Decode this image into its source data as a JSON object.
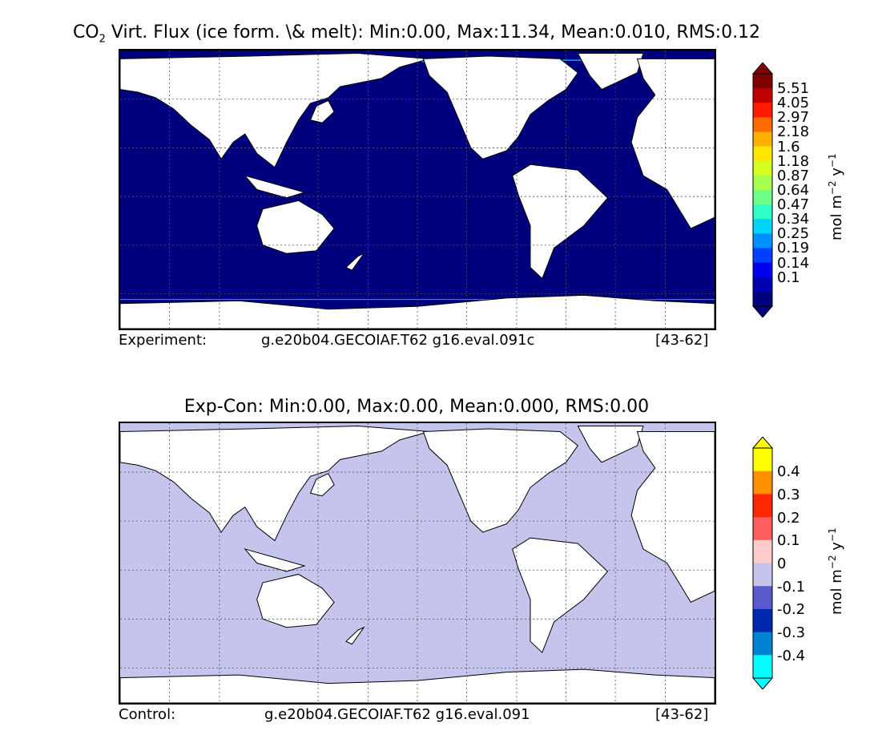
{
  "panels": [
    {
      "id": "experiment",
      "title_main": "Virt. Flux (ice form. \\& melt): Min:0.00, Max:11.34, Mean:0.010, RMS:0.12",
      "title_prefix": "CO",
      "title_sub": "2",
      "footer_left": "Experiment:",
      "footer_mid": "g.e20b04.GECOIAF.T62 g16.eval.091c",
      "footer_right": "[43-62]",
      "ocean_color": "#00007f",
      "colorbar": {
        "unit_main": "mol m",
        "unit_exp1": "−2",
        "unit_mid": " y",
        "unit_exp2": "−1",
        "labels": [
          "5.51",
          "4.05",
          "2.97",
          "2.18",
          "1.6",
          "1.18",
          "0.87",
          "0.64",
          "0.47",
          "0.34",
          "0.25",
          "0.19",
          "0.14",
          "0.1"
        ],
        "colors": [
          "#7f0000",
          "#bf0000",
          "#ff1a00",
          "#ff6a00",
          "#ffb000",
          "#ffe600",
          "#d4ff22",
          "#a6ff50",
          "#6dff8a",
          "#30ffc7",
          "#00d4ff",
          "#0090ff",
          "#0040ff",
          "#0000f1",
          "#0000b2",
          "#00007f"
        ]
      }
    },
    {
      "id": "difference",
      "title_main": "Exp-Con: Min:0.00, Max:0.00, Mean:0.000, RMS:0.00",
      "footer_left": "Control:",
      "footer_mid": "g.e20b04.GECOIAF.T62 g16.eval.091",
      "footer_right": "[43-62]",
      "ocean_color": "#c4c4ec",
      "colorbar": {
        "unit_main": "mol m",
        "unit_exp1": "−2",
        "unit_mid": " y",
        "unit_exp2": "−1",
        "labels": [
          "0.4",
          "0.3",
          "0.2",
          "0.1",
          "0",
          "-0.1",
          "-0.2",
          "-0.3",
          "-0.4"
        ],
        "colors": [
          "#ffff00",
          "#ff9100",
          "#ff2800",
          "#ff5e5e",
          "#ffcccc",
          "#c4c4ec",
          "#5a5acd",
          "#0027b0",
          "#0083d2",
          "#00ffff"
        ]
      }
    }
  ]
}
